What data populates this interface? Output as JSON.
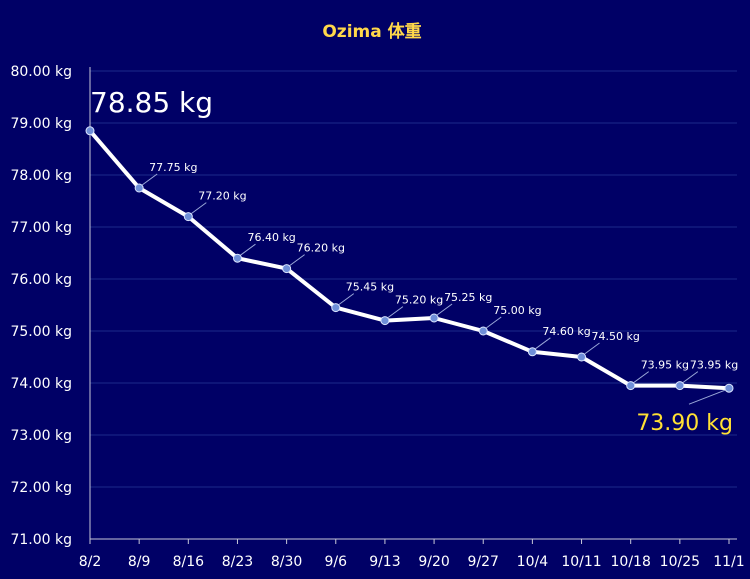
{
  "chart_data": {
    "type": "line",
    "title": "Ozima 体重",
    "unit": "kg",
    "ylim": [
      71.0,
      80.0
    ],
    "ystep": 1.0,
    "categories": [
      "8/2",
      "8/9",
      "8/16",
      "8/23",
      "8/30",
      "9/6",
      "9/13",
      "9/20",
      "9/27",
      "10/4",
      "10/11",
      "10/18",
      "10/25",
      "11/1"
    ],
    "values": [
      78.85,
      77.75,
      77.2,
      76.4,
      76.2,
      75.45,
      75.2,
      75.25,
      75.0,
      74.6,
      74.5,
      73.95,
      73.95,
      73.9
    ],
    "y_tick_labels": [
      "71.00 kg",
      "72.00 kg",
      "73.00 kg",
      "74.00 kg",
      "75.00 kg",
      "76.00 kg",
      "77.00 kg",
      "78.00 kg",
      "79.00 kg",
      "80.00 kg"
    ],
    "data_labels": [
      "78.85 kg",
      "77.75 kg",
      "77.20 kg",
      "76.40 kg",
      "76.20 kg",
      "75.45 kg",
      "75.20 kg",
      "75.25 kg",
      "75.00 kg",
      "74.60 kg",
      "74.50 kg",
      "73.95 kg",
      "73.95 kg",
      "73.90 kg"
    ],
    "grid": true,
    "colors": {
      "background": "#000066",
      "line": "#ffffff",
      "marker": "#6f8fd8",
      "title": "#ffd84a",
      "highlight_last": "#ffe033"
    }
  }
}
